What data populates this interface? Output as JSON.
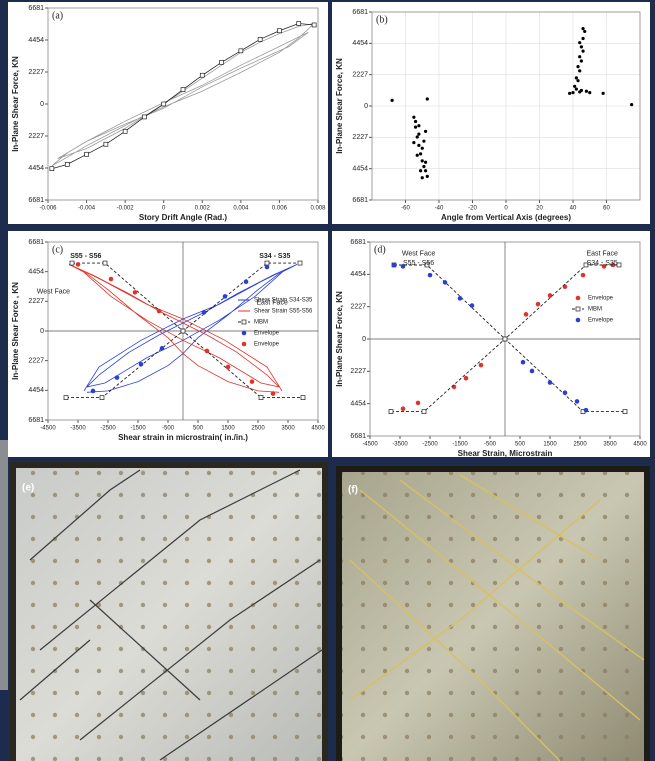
{
  "chart_data": [
    {
      "type": "line",
      "title": "(a)",
      "xlabel": "Story Drift Angle (Rad.)",
      "ylabel": "In-Plane Shear Force, KN",
      "xlim": [
        -0.006,
        0.008
      ],
      "xticks": [
        -0.006,
        -0.004,
        -0.002,
        0,
        0.002,
        0.004,
        0.006,
        0.008
      ],
      "ylim": [
        -6681,
        6681
      ],
      "yticks": [
        6681,
        4454,
        2227,
        0,
        {
          "value": -2227,
          "label": "2227"
        },
        {
          "value": -4454,
          "label": "4454"
        },
        {
          "value": -6681,
          "label": "6681"
        }
      ],
      "grid": false,
      "zero_lines": false,
      "series": [
        {
          "color": "#9a9a9a",
          "type": "line",
          "x": [
            0,
            0.001,
            0.002,
            0.003,
            0.004,
            0.005,
            0.006,
            0.007,
            0.0078,
            0.007,
            0.006,
            0.004,
            0.002,
            0,
            -0.001,
            -0.002,
            -0.003,
            -0.004,
            -0.005,
            -0.0058,
            -0.005,
            -0.004,
            -0.002,
            0,
            0.002,
            0.004,
            0.006,
            0.0075,
            0.0065,
            0.004,
            0.002,
            0,
            -0.002,
            -0.004,
            -0.0055,
            -0.004,
            -0.002,
            0
          ],
          "values": [
            0,
            900,
            1800,
            2700,
            3600,
            4300,
            4900,
            5400,
            5600,
            4600,
            3600,
            2200,
            900,
            -200,
            -800,
            -1500,
            -2200,
            -2900,
            -3700,
            -4300,
            -3400,
            -2600,
            -1200,
            100,
            1300,
            2700,
            4000,
            5000,
            4000,
            2500,
            1200,
            -300,
            -1400,
            -2600,
            -3800,
            -3100,
            -1700,
            0
          ]
        },
        {
          "color": "#222222",
          "type": "line",
          "marker": "square",
          "x": [
            -0.0058,
            -0.005,
            -0.004,
            -0.003,
            -0.002,
            -0.001,
            0,
            0.001,
            0.002,
            0.003,
            0.004,
            0.005,
            0.006,
            0.007,
            0.0078
          ],
          "values": [
            -4500,
            -4200,
            -3500,
            -2800,
            -1900,
            -900,
            0,
            1000,
            2000,
            2900,
            3700,
            4500,
            5100,
            5600,
            5500
          ]
        }
      ]
    },
    {
      "type": "scatter",
      "title": "(b)",
      "xlabel": "Angle from Vertical Axis (degrees)",
      "ylabel": "In-Plane Shear Force, KN",
      "xlim": [
        -80,
        80
      ],
      "xticks": [
        -60,
        -40,
        -20,
        0,
        20,
        40,
        60
      ],
      "ylim": [
        -6681,
        6681
      ],
      "yticks": [
        6681,
        4454,
        2227,
        0,
        {
          "value": -2227,
          "label": "2227"
        },
        {
          "value": -4454,
          "label": "4454"
        },
        {
          "value": -6681,
          "label": "6681"
        }
      ],
      "grid": true,
      "zero_lines": false,
      "series": [
        {
          "color": "#000000",
          "type": "scatter",
          "x": [
            -55,
            -54,
            -53,
            -52,
            -51,
            -50,
            -49,
            -48,
            -47,
            -54,
            -52,
            -50,
            -48,
            -53,
            -51,
            -49,
            -55,
            -50,
            -52,
            -48,
            -68,
            -47
          ],
          "values": [
            -800,
            -1500,
            -2200,
            -2800,
            -3400,
            -3900,
            -4300,
            -4600,
            -5000,
            -1100,
            -2000,
            -3000,
            -4000,
            -3500,
            -4600,
            -2500,
            -2600,
            -5100,
            -1400,
            -1800,
            400,
            500
          ]
        },
        {
          "color": "#000000",
          "type": "scatter",
          "x": [
            41,
            42,
            43,
            44,
            45,
            46,
            47,
            43,
            44,
            45,
            46,
            42,
            44,
            46,
            45,
            38,
            40,
            44,
            48,
            50,
            58,
            75
          ],
          "values": [
            1400,
            2000,
            2800,
            3500,
            4200,
            4800,
            5300,
            1800,
            2500,
            3200,
            5500,
            1200,
            4500,
            3900,
            1100,
            900,
            950,
            1000,
            1050,
            950,
            900,
            100
          ]
        }
      ]
    },
    {
      "type": "line",
      "title": "(c)",
      "xlabel": "Shear strain in microstrain( in./in.)",
      "ylabel": "In-Plane Shear Force , KN",
      "xlim": [
        -4500,
        4500
      ],
      "xticks": [
        -4500,
        -3500,
        -2500,
        -1500,
        -500,
        500,
        1500,
        2500,
        3500,
        4500
      ],
      "ylim": [
        -6681,
        6681
      ],
      "yticks": [
        6681,
        4454,
        2227,
        0,
        {
          "value": -2227,
          "label": "2227"
        },
        {
          "value": -4454,
          "label": "4454"
        },
        {
          "value": -6681,
          "label": "6681"
        }
      ],
      "grid": false,
      "zero_lines": true,
      "legend": "right",
      "annotations": [
        "S55 - S56",
        "S34 - S35",
        "West Face",
        "East Face"
      ],
      "series": [
        {
          "name": "Shear Strain S34-S35",
          "color": "#2a3fd6",
          "type": "line",
          "x": [
            -3200,
            -2500,
            -1500,
            -500,
            0,
            500,
            1500,
            2500,
            3200,
            3800,
            3000,
            1800,
            800,
            0,
            -800,
            -1800,
            -2800,
            -3200,
            -2600,
            -1200,
            0,
            1200,
            2400,
            3400,
            2600,
            1200,
            0,
            -1400,
            -2800,
            -3300
          ],
          "values": [
            -4600,
            -4500,
            -3800,
            -2600,
            -1700,
            -500,
            1200,
            3100,
            4300,
            5000,
            4200,
            2800,
            1500,
            600,
            -300,
            -1600,
            -3300,
            -4200,
            -3900,
            -2000,
            -700,
            800,
            2600,
            4600,
            3700,
            2000,
            900,
            -700,
            -2700,
            -4500
          ]
        },
        {
          "name": "Shear Strain S55-S56",
          "color": "#e0332b",
          "type": "line",
          "x": [
            3200,
            2500,
            1500,
            500,
            0,
            -500,
            -1500,
            -2500,
            -3200,
            -3800,
            -3000,
            -1800,
            -800,
            0,
            800,
            1800,
            2800,
            3200,
            2600,
            1200,
            0,
            -1200,
            -2400,
            -3400,
            -2600,
            -1200,
            0,
            1400,
            2800,
            3300
          ],
          "values": [
            -4600,
            -4500,
            -3800,
            -2600,
            -1700,
            -500,
            1200,
            3100,
            4300,
            5000,
            4200,
            2800,
            1500,
            600,
            -300,
            -1600,
            -3300,
            -4200,
            -3900,
            -2000,
            -700,
            800,
            2600,
            4600,
            3700,
            2000,
            900,
            -700,
            -2700,
            -4500
          ]
        },
        {
          "name": "MBM",
          "color": "#222222",
          "type": "line",
          "dash": true,
          "marker": "square",
          "x": [
            -3700,
            -2600,
            0,
            2600,
            4000,
            null,
            -3900,
            -2700,
            0,
            2800,
            3900
          ],
          "values": [
            5100,
            5100,
            0,
            -5000,
            -5000,
            null,
            -5000,
            -5000,
            0,
            5100,
            5100
          ]
        },
        {
          "name": "Envelope",
          "color": "#2a3fd6",
          "type": "scatter",
          "x": [
            -3000,
            -2200,
            -1400,
            -700,
            700,
            1400,
            2100,
            2800
          ],
          "values": [
            -4500,
            -3500,
            -2500,
            -1300,
            1400,
            2600,
            3700,
            4800
          ]
        },
        {
          "name": "Envelope",
          "color": "#e0332b",
          "type": "scatter",
          "x": [
            -3500,
            -2400,
            -1600,
            -800,
            800,
            1500,
            2300,
            3000
          ],
          "values": [
            5000,
            3900,
            2900,
            1500,
            -1500,
            -2700,
            -3800,
            -4700
          ]
        }
      ]
    },
    {
      "type": "line",
      "title": "(d)",
      "xlabel": "Shear Strain, Microstrain",
      "ylabel": "In-Plane Shear Force, KN",
      "xlim": [
        -4500,
        4500
      ],
      "xticks": [
        -4500,
        -3500,
        -2500,
        -1500,
        -500,
        500,
        1500,
        2500,
        3500,
        4500
      ],
      "ylim": [
        -6681,
        6681
      ],
      "yticks": [
        6681,
        4454,
        2227,
        0,
        {
          "value": -2227,
          "label": "2227"
        },
        {
          "value": -4454,
          "label": "4454"
        },
        {
          "value": -6681,
          "label": "6681"
        }
      ],
      "grid": false,
      "zero_lines": true,
      "legend": "right",
      "annotations": [
        "West Face",
        "S55 - S56",
        "East Face",
        "S34 - S35"
      ],
      "series": [
        {
          "name": "Envelope",
          "color": "#e0332b",
          "type": "scatter",
          "x": [
            -3800,
            -3400,
            -2900,
            -1700,
            -1300,
            -800,
            700,
            1100,
            1500,
            2000,
            2600,
            3300,
            3600
          ],
          "values": [
            -5000,
            -4800,
            -4400,
            -3300,
            -2700,
            -1800,
            1700,
            2400,
            3000,
            3600,
            4400,
            5000,
            5100
          ]
        },
        {
          "name": "MBM",
          "color": "#222222",
          "type": "line",
          "dash": true,
          "marker": "square",
          "x": [
            -3700,
            -2600,
            0,
            2600,
            4000,
            null,
            -3800,
            -2700,
            0,
            2700,
            3800
          ],
          "values": [
            5100,
            5100,
            0,
            -5000,
            -5000,
            null,
            -5000,
            -5000,
            0,
            5100,
            5100
          ]
        },
        {
          "name": "Envelope",
          "color": "#2a3fd6",
          "type": "scatter",
          "x": [
            -3700,
            -3400,
            -2500,
            -2000,
            -1500,
            -1100,
            600,
            900,
            1500,
            2000,
            2400,
            2700
          ],
          "values": [
            5100,
            5000,
            4400,
            3900,
            2800,
            2300,
            -1600,
            -2200,
            -3000,
            -3700,
            -4300,
            -4900
          ]
        }
      ]
    }
  ],
  "photos": [
    {
      "label": "(e)"
    },
    {
      "label": "(f)"
    }
  ]
}
